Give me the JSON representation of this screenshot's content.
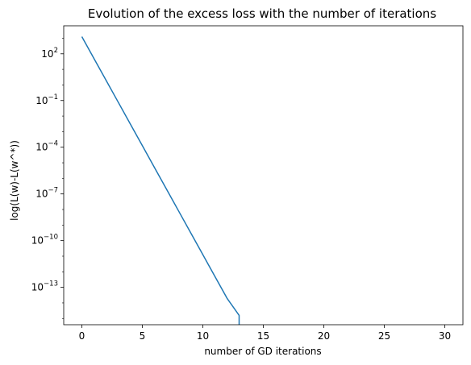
{
  "chart_data": {
    "type": "line",
    "title": "Evolution of the excess loss with the number of iterations",
    "xlabel": "number of GD iterations",
    "ylabel": "log(L(w)-L(w^*))",
    "yscale": "log",
    "xlim": [
      -1.5,
      31.5
    ],
    "ylim_log10": [
      -15.4,
      3.8
    ],
    "grid": false,
    "x_ticks": [
      0,
      5,
      10,
      15,
      20,
      25,
      30
    ],
    "x_tick_labels": [
      "0",
      "5",
      "10",
      "15",
      "20",
      "25",
      "30"
    ],
    "y_ticks_log10": [
      2,
      -1,
      -4,
      -7,
      -10,
      -13
    ],
    "y_tick_labels": [
      {
        "base": "10",
        "exp": "2"
      },
      {
        "base": "10",
        "exp": "−1"
      },
      {
        "base": "10",
        "exp": "−4"
      },
      {
        "base": "10",
        "exp": "−7"
      },
      {
        "base": "10",
        "exp": "−10"
      },
      {
        "base": "10",
        "exp": "−13"
      }
    ],
    "series": [
      {
        "color": "#1f77b4",
        "x": [
          0,
          1,
          2,
          3,
          4,
          5,
          6,
          7,
          8,
          9,
          10,
          11,
          12,
          13,
          13
        ],
        "y_log10": [
          3.1,
          1.7,
          0.3,
          -1.1,
          -2.5,
          -3.9,
          -5.3,
          -6.7,
          -8.1,
          -9.5,
          -10.9,
          -12.3,
          -13.7,
          -14.8,
          -15.4
        ]
      }
    ]
  }
}
